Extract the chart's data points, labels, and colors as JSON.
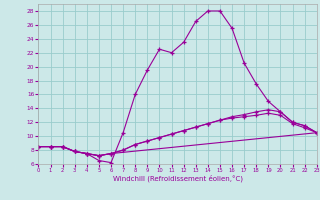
{
  "xlabel": "Windchill (Refroidissement éolien,°C)",
  "background_color": "#cce8e8",
  "line_color": "#990099",
  "grid_color": "#99cccc",
  "xlim": [
    0,
    23
  ],
  "ylim": [
    6,
    29
  ],
  "yticks": [
    6,
    8,
    10,
    12,
    14,
    16,
    18,
    20,
    22,
    24,
    26,
    28
  ],
  "xticks": [
    0,
    1,
    2,
    3,
    4,
    5,
    6,
    7,
    8,
    9,
    10,
    11,
    12,
    13,
    14,
    15,
    16,
    17,
    18,
    19,
    20,
    21,
    22,
    23
  ],
  "curve1_x": [
    0,
    1,
    2,
    3,
    4,
    5,
    6,
    7,
    8,
    9,
    10,
    11,
    12,
    13,
    14,
    15,
    16,
    17,
    18,
    19,
    20,
    21,
    22,
    23
  ],
  "curve1_y": [
    8.5,
    8.5,
    8.5,
    7.8,
    7.5,
    6.5,
    6.2,
    10.5,
    16.0,
    19.5,
    22.5,
    22.0,
    23.5,
    26.5,
    28.0,
    28.0,
    25.5,
    20.5,
    17.5,
    15.0,
    13.5,
    12.0,
    11.5,
    10.5
  ],
  "curve2_x": [
    0,
    1,
    2,
    3,
    4,
    5,
    6,
    7,
    8,
    9,
    10,
    11,
    12,
    13,
    14,
    15,
    16,
    17,
    18,
    19,
    20,
    21,
    22,
    23
  ],
  "curve2_y": [
    8.5,
    8.5,
    8.5,
    7.8,
    7.5,
    7.2,
    7.5,
    8.0,
    8.8,
    9.3,
    9.8,
    10.3,
    10.8,
    11.3,
    11.8,
    12.3,
    12.8,
    13.1,
    13.5,
    13.8,
    13.5,
    12.0,
    11.5,
    10.5
  ],
  "curve3_x": [
    0,
    1,
    2,
    3,
    4,
    5,
    6,
    7,
    8,
    9,
    10,
    11,
    12,
    13,
    14,
    15,
    16,
    17,
    18,
    19,
    20,
    21,
    22,
    23
  ],
  "curve3_y": [
    8.5,
    8.5,
    8.5,
    7.8,
    7.5,
    7.2,
    7.5,
    8.0,
    8.8,
    9.3,
    9.8,
    10.3,
    10.8,
    11.3,
    11.8,
    12.3,
    12.6,
    12.8,
    13.0,
    13.3,
    13.0,
    11.8,
    11.2,
    10.5
  ],
  "curve4_x": [
    0,
    1,
    2,
    3,
    4,
    5,
    6,
    23
  ],
  "curve4_y": [
    8.5,
    8.5,
    8.5,
    7.8,
    7.5,
    7.2,
    7.5,
    10.5
  ]
}
